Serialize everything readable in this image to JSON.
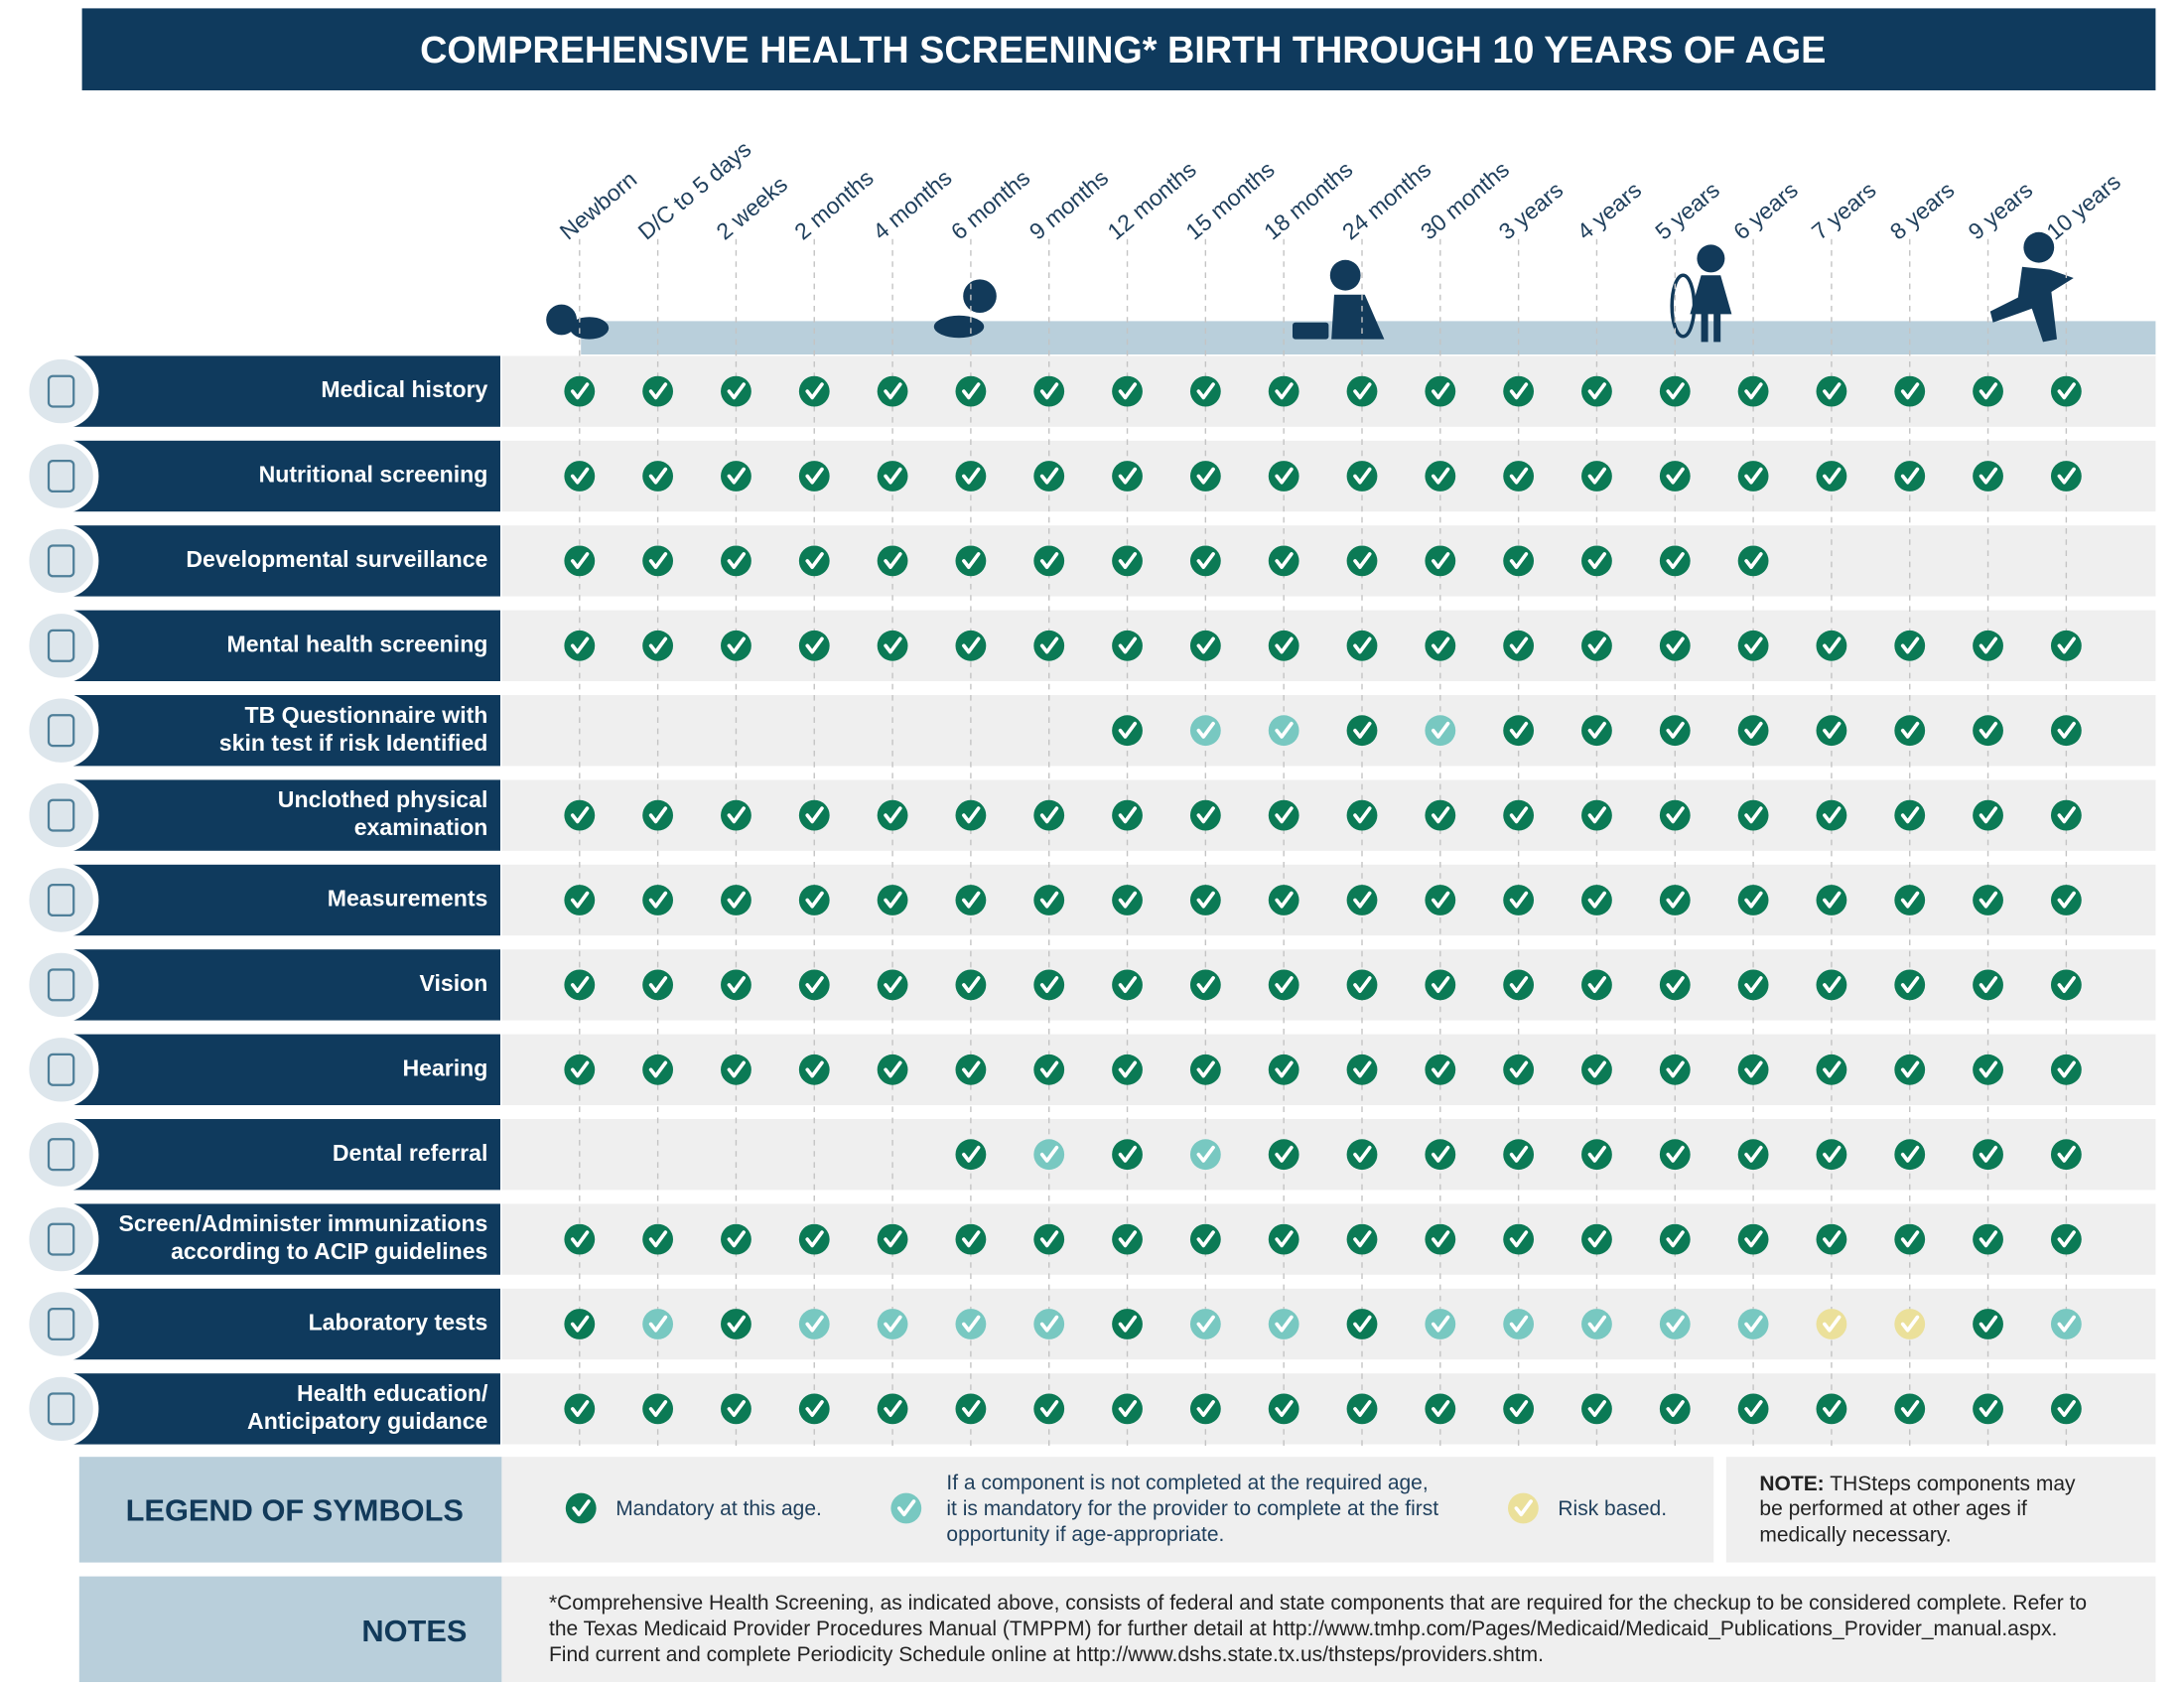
{
  "header": {
    "title": "COMPREHENSIVE HEALTH SCREENING* BIRTH THROUGH 10 YEARS OF AGE"
  },
  "columns": [
    "Newborn",
    "D/C to 5 days",
    "2 weeks",
    "2 months",
    "4 months",
    "6 months",
    "9 months",
    "12 months",
    "15 months",
    "18 months",
    "24 months",
    "30 months",
    "3 years",
    "4 years",
    "5 years",
    "6 years",
    "7 years",
    "8 years",
    "9 years",
    "10 years"
  ],
  "rows": [
    {
      "label": [
        "Medical history"
      ],
      "cells": [
        0,
        0,
        0,
        0,
        0,
        0,
        0,
        0,
        0,
        0,
        0,
        0,
        0,
        0,
        0,
        0,
        0,
        0,
        0,
        0
      ]
    },
    {
      "label": [
        "Nutritional screening"
      ],
      "cells": [
        0,
        0,
        0,
        0,
        0,
        0,
        0,
        0,
        0,
        0,
        0,
        0,
        0,
        0,
        0,
        0,
        0,
        0,
        0,
        0
      ]
    },
    {
      "label": [
        "Developmental surveillance"
      ],
      "cells": [
        0,
        0,
        0,
        0,
        0,
        0,
        0,
        0,
        0,
        0,
        0,
        0,
        0,
        0,
        0,
        0,
        null,
        null,
        null,
        null
      ]
    },
    {
      "label": [
        "Mental health screening"
      ],
      "cells": [
        0,
        0,
        0,
        0,
        0,
        0,
        0,
        0,
        0,
        0,
        0,
        0,
        0,
        0,
        0,
        0,
        0,
        0,
        0,
        0
      ]
    },
    {
      "label": [
        "TB Questionnaire with",
        "skin test if risk Identified"
      ],
      "cells": [
        null,
        null,
        null,
        null,
        null,
        null,
        null,
        0,
        1,
        1,
        0,
        1,
        0,
        0,
        0,
        0,
        0,
        0,
        0,
        0
      ]
    },
    {
      "label": [
        "Unclothed physical",
        "examination"
      ],
      "cells": [
        0,
        0,
        0,
        0,
        0,
        0,
        0,
        0,
        0,
        0,
        0,
        0,
        0,
        0,
        0,
        0,
        0,
        0,
        0,
        0
      ]
    },
    {
      "label": [
        "Measurements"
      ],
      "cells": [
        0,
        0,
        0,
        0,
        0,
        0,
        0,
        0,
        0,
        0,
        0,
        0,
        0,
        0,
        0,
        0,
        0,
        0,
        0,
        0
      ]
    },
    {
      "label": [
        "Vision"
      ],
      "cells": [
        0,
        0,
        0,
        0,
        0,
        0,
        0,
        0,
        0,
        0,
        0,
        0,
        0,
        0,
        0,
        0,
        0,
        0,
        0,
        0
      ]
    },
    {
      "label": [
        "Hearing"
      ],
      "cells": [
        0,
        0,
        0,
        0,
        0,
        0,
        0,
        0,
        0,
        0,
        0,
        0,
        0,
        0,
        0,
        0,
        0,
        0,
        0,
        0
      ]
    },
    {
      "label": [
        "Dental referral"
      ],
      "cells": [
        null,
        null,
        null,
        null,
        null,
        0,
        1,
        0,
        1,
        0,
        0,
        0,
        0,
        0,
        0,
        0,
        0,
        0,
        0,
        0
      ]
    },
    {
      "label": [
        "Screen/Administer immunizations",
        "according to ACIP guidelines"
      ],
      "cells": [
        0,
        0,
        0,
        0,
        0,
        0,
        0,
        0,
        0,
        0,
        0,
        0,
        0,
        0,
        0,
        0,
        0,
        0,
        0,
        0
      ]
    },
    {
      "label": [
        "Laboratory tests"
      ],
      "cells": [
        0,
        1,
        0,
        1,
        1,
        1,
        1,
        0,
        1,
        1,
        0,
        1,
        1,
        1,
        1,
        1,
        2,
        2,
        0,
        1
      ]
    },
    {
      "label": [
        "Health education/",
        "Anticipatory guidance"
      ],
      "cells": [
        0,
        0,
        0,
        0,
        0,
        0,
        0,
        0,
        0,
        0,
        0,
        0,
        0,
        0,
        0,
        0,
        0,
        0,
        0,
        0
      ]
    }
  ],
  "legend": {
    "title": "LEGEND OF SYMBOLS",
    "items": [
      {
        "lines": [
          "Mandatory at this age."
        ],
        "color": "#0b7a55"
      },
      {
        "lines": [
          "If a component is not completed at the required age,",
          "it is mandatory for the provider to complete at the first",
          "opportunity if age-appropriate."
        ],
        "color": "#78c8c1"
      },
      {
        "lines": [
          "Risk based."
        ],
        "color": "#ebe09a"
      }
    ]
  },
  "note": {
    "label": "NOTE:",
    "lines": [
      "THSteps components may",
      "be performed at other ages if",
      "medically necessary."
    ]
  },
  "notes": {
    "title": "NOTES",
    "lines": [
      "*Comprehensive Health Screening, as indicated above, consists of federal and state components that are required for the checkup to be considered complete. Refer to",
      "the Texas Medicaid Provider Procedures Manual (TMPPM) for further detail at http://www.tmhp.com/Pages/Medicaid/Medicaid_Publications_Provider_manual.aspx.",
      "Find current and complete Periodicity Schedule online at http://www.dshs.state.tx.us/thsteps/providers.shtm."
    ]
  }
}
